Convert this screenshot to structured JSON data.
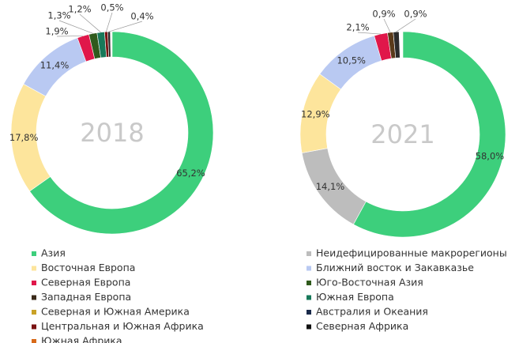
{
  "chart_data": [
    {
      "type": "pie",
      "center_label": "2018",
      "values": [
        65.2,
        17.8,
        11.4,
        1.9,
        1.3,
        1.2,
        0.5,
        0.4
      ],
      "value_labels": [
        "65,2%",
        "17,8%",
        "11,4%",
        "1,9%",
        "1,3%",
        "1,2%",
        "0,5%",
        "0,4%"
      ],
      "colors": [
        "#3dcf7c",
        "#fde59c",
        "#b9c9f2",
        "#e0174a",
        "#2f5a1c",
        "#17795a",
        "#7a1212",
        "#2b2b2b"
      ]
    },
    {
      "type": "pie",
      "center_label": "2021",
      "values": [
        58.0,
        14.1,
        12.9,
        10.5,
        2.1,
        0.9,
        0.9
      ],
      "value_labels": [
        "58,0%",
        "14,1%",
        "12,9%",
        "10,5%",
        "2,1%",
        "0,9%",
        "0,9%"
      ],
      "colors": [
        "#3dcf7c",
        "#bdbdbd",
        "#fde59c",
        "#b9c9f2",
        "#e0174a",
        "#5a3a1a",
        "#2b2b2b"
      ]
    }
  ],
  "legend": [
    {
      "name": "Азия",
      "color": "#3dcf7c"
    },
    {
      "name": "Восточная Европа",
      "color": "#fde59c"
    },
    {
      "name": "Северная Европа",
      "color": "#e0174a"
    },
    {
      "name": "Западная Европа",
      "color": "#3a2a1a"
    },
    {
      "name": "Северная и Южная Америка",
      "color": "#c9a227"
    },
    {
      "name": "Центральная и Южная Африка",
      "color": "#7a1212"
    },
    {
      "name": "Южная Африка",
      "color": "#d86a1a"
    },
    {
      "name": "Неидефицированные макрорегионы",
      "color": "#bdbdbd"
    },
    {
      "name": "Ближний восток и Закавказье",
      "color": "#b9c9f2"
    },
    {
      "name": "Юго-Восточная Азия",
      "color": "#2f5a1c"
    },
    {
      "name": "Южная Европа",
      "color": "#17795a"
    },
    {
      "name": "Австралия и Океания",
      "color": "#1a2a4a"
    },
    {
      "name": "Северная Африка",
      "color": "#111111"
    }
  ]
}
